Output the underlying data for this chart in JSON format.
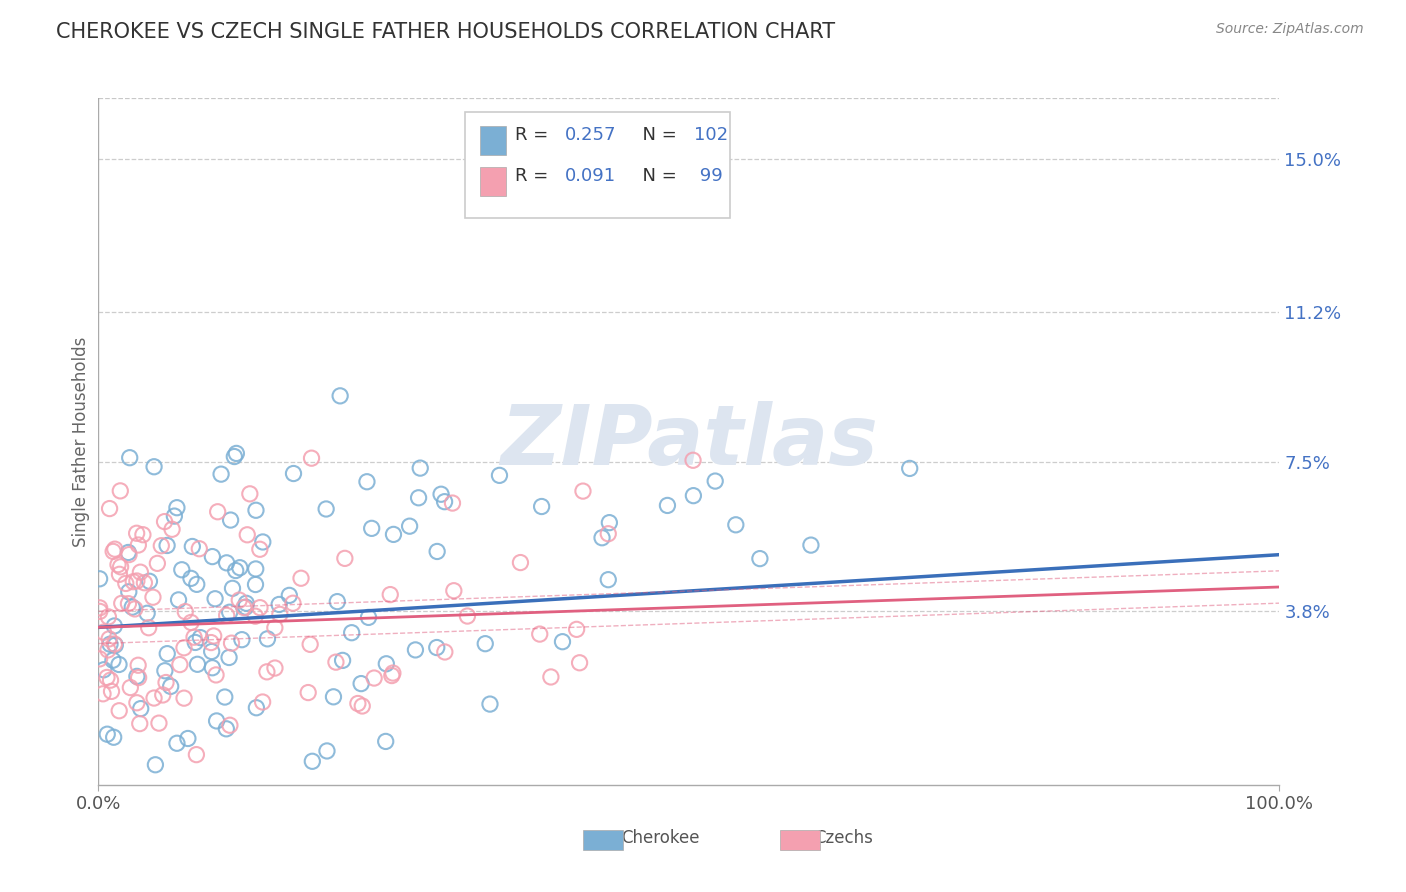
{
  "title": "CHEROKEE VS CZECH SINGLE FATHER HOUSEHOLDS CORRELATION CHART",
  "source_text": "Source: ZipAtlas.com",
  "ylabel": "Single Father Households",
  "xlim": [
    0.0,
    1.0
  ],
  "ylim": [
    -0.005,
    0.165
  ],
  "yticks": [
    0.038,
    0.075,
    0.112,
    0.15
  ],
  "ytick_labels": [
    "3.8%",
    "7.5%",
    "11.2%",
    "15.0%"
  ],
  "xticks": [
    0.0,
    1.0
  ],
  "xtick_labels": [
    "0.0%",
    "100.0%"
  ],
  "cherokee_R": 0.257,
  "cherokee_N": 102,
  "czechs_R": 0.091,
  "czechs_N": 99,
  "cherokee_color": "#7bafd4",
  "czechs_color": "#f4a0b0",
  "cherokee_line_color": "#3a6fba",
  "czechs_line_color": "#e06080",
  "background_color": "#ffffff",
  "grid_color": "#c8c8c8",
  "title_color": "#333333",
  "axis_label_color": "#666666",
  "tick_label_color": "#4472c4",
  "watermark_color": "#dde5f0",
  "legend_text_color": "#4472c4",
  "legend_label_color": "#333333"
}
